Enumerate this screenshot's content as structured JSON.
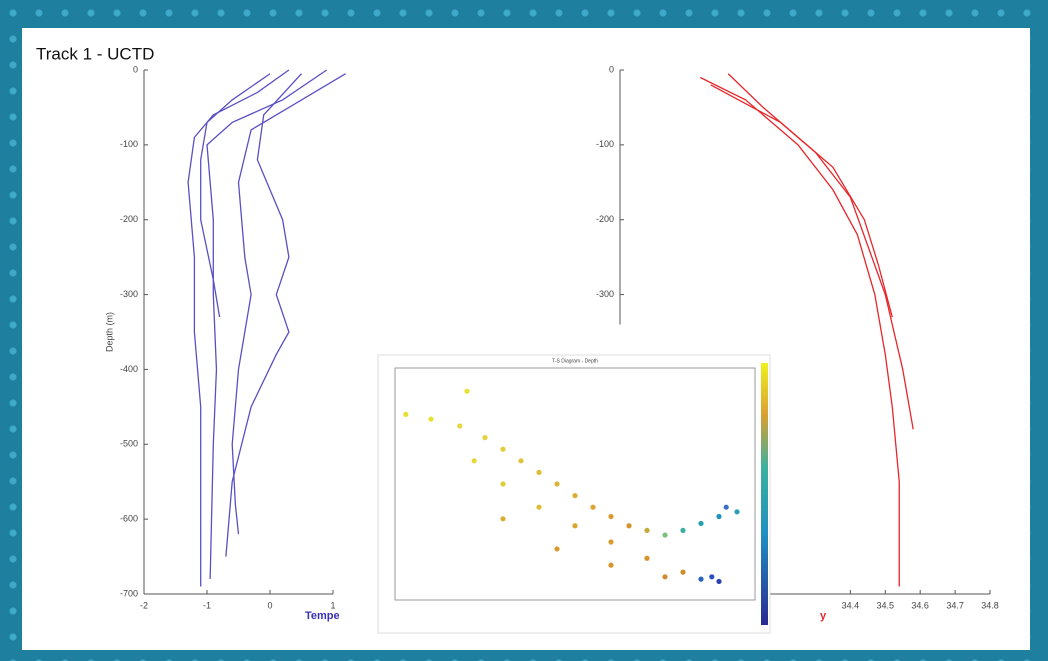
{
  "title": "Track 1 - UCTD",
  "chart_data": [
    {
      "type": "line",
      "y_label": "Depth (m)",
      "x_label": "Tempe",
      "xlim": [
        -2,
        1
      ],
      "ylim": [
        -700,
        0
      ],
      "xticks": [
        -2,
        -1,
        0,
        1
      ],
      "yticks": [
        0,
        -100,
        -200,
        -300,
        -400,
        -500,
        -600,
        -700
      ],
      "label_color": "#3a32b8",
      "series": [
        {
          "color": "#5a4fc4",
          "x": [
            0.3,
            -0.2,
            -0.9,
            -1.2,
            -1.3,
            -1.2,
            -1.2,
            -1.1,
            -1.1,
            -1.1
          ],
          "values": [
            0,
            -30,
            -60,
            -90,
            -150,
            -250,
            -350,
            -450,
            -550,
            -690
          ]
        },
        {
          "color": "#5a4fc4",
          "x": [
            0.9,
            0.2,
            -0.6,
            -1.0,
            -0.9,
            -0.9,
            -0.85,
            -0.9,
            -0.95
          ],
          "values": [
            0,
            -40,
            -70,
            -100,
            -200,
            -300,
            -400,
            -500,
            -680
          ]
        },
        {
          "color": "#5a4fc4",
          "x": [
            1.2,
            0.3,
            -0.3,
            -0.5,
            -0.4,
            -0.3,
            -0.5,
            -0.6,
            -0.55,
            -0.5
          ],
          "values": [
            -5,
            -50,
            -80,
            -150,
            -250,
            -300,
            -400,
            -500,
            -580,
            -620
          ]
        },
        {
          "color": "#5a4fc4",
          "x": [
            0.5,
            -0.1,
            -0.2,
            0.2,
            0.3,
            0.1,
            0.3,
            0.1,
            -0.3,
            -0.6,
            -0.7
          ],
          "values": [
            -5,
            -60,
            -120,
            -200,
            -250,
            -300,
            -350,
            -380,
            -450,
            -550,
            -650
          ]
        },
        {
          "color": "#5a4fc4",
          "x": [
            0.0,
            -0.6,
            -1.0,
            -1.1,
            -1.1,
            -0.9,
            -0.8
          ],
          "values": [
            -5,
            -40,
            -70,
            -120,
            -200,
            -280,
            -330
          ]
        }
      ]
    },
    {
      "type": "line",
      "x_label": "y",
      "xlim": [
        33.74,
        34.8
      ],
      "ylim": [
        -700,
        0
      ],
      "xticks": [
        34.4,
        34.5,
        34.6,
        34.7,
        34.8
      ],
      "yticks": [
        0,
        -100,
        -200,
        -300
      ],
      "label_color": "#e8262a",
      "series": [
        {
          "color": "#e8262a",
          "x": [
            33.97,
            34.1,
            34.25,
            34.35,
            34.42,
            34.47,
            34.5,
            34.52,
            34.54,
            34.54
          ],
          "values": [
            -10,
            -40,
            -100,
            -160,
            -220,
            -300,
            -380,
            -450,
            -550,
            -690
          ]
        },
        {
          "color": "#e8262a",
          "x": [
            34.05,
            34.15,
            34.3,
            34.4,
            34.5,
            34.55,
            34.58
          ],
          "values": [
            -5,
            -50,
            -110,
            -170,
            -300,
            -400,
            -480
          ]
        },
        {
          "color": "#e8262a",
          "x": [
            34.0,
            34.2,
            34.35,
            34.44,
            34.48,
            34.52
          ],
          "values": [
            -20,
            -70,
            -130,
            -200,
            -260,
            -330
          ]
        }
      ]
    },
    {
      "type": "scatter",
      "title": "T-S Diagram - Depth",
      "xlim": [
        0,
        1
      ],
      "ylim": [
        0,
        1
      ],
      "x": [
        0.03,
        0.1,
        0.18,
        0.2,
        0.25,
        0.3,
        0.35,
        0.4,
        0.45,
        0.5,
        0.55,
        0.6,
        0.65,
        0.7,
        0.75,
        0.8,
        0.85,
        0.9,
        0.92,
        0.95,
        0.22,
        0.3,
        0.4,
        0.5,
        0.6,
        0.7,
        0.8,
        0.88,
        0.3,
        0.45,
        0.6,
        0.75,
        0.85,
        0.9
      ],
      "values": [
        0.8,
        0.78,
        0.75,
        0.9,
        0.7,
        0.65,
        0.6,
        0.55,
        0.5,
        0.45,
        0.4,
        0.36,
        0.32,
        0.3,
        0.28,
        0.3,
        0.33,
        0.36,
        0.4,
        0.38,
        0.6,
        0.5,
        0.4,
        0.32,
        0.25,
        0.18,
        0.12,
        0.1,
        0.35,
        0.22,
        0.15,
        0.1,
        0.09,
        0.08
      ],
      "colors": [
        "#e8e030",
        "#e8e030",
        "#e6d83a",
        "#e8e030",
        "#e4d23c",
        "#e2cc3a",
        "#e0c436",
        "#dfbc34",
        "#ddb432",
        "#dcac30",
        "#daa42e",
        "#d89c2c",
        "#d6942a",
        "#c8a838",
        "#7cc07a",
        "#3cb0a0",
        "#20a0b0",
        "#2090c0",
        "#3a70c8",
        "#2aa0b0",
        "#e6d83a",
        "#e2cc3a",
        "#dfbc34",
        "#daa42e",
        "#d89c2c",
        "#d6942a",
        "#d08c2a",
        "#2a50c0",
        "#dcac30",
        "#d89c2c",
        "#d6942a",
        "#d08c2a",
        "#2a60c0",
        "#2a40b0"
      ]
    }
  ]
}
